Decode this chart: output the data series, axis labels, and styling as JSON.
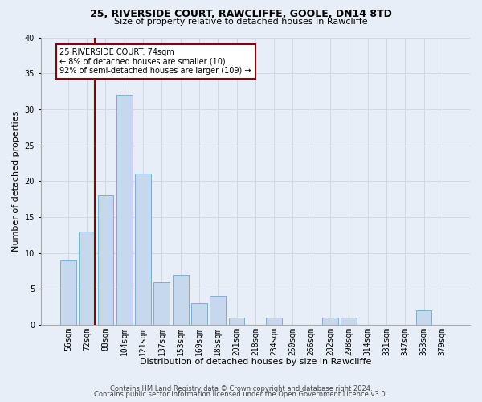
{
  "title1": "25, RIVERSIDE COURT, RAWCLIFFE, GOOLE, DN14 8TD",
  "title2": "Size of property relative to detached houses in Rawcliffe",
  "xlabel": "Distribution of detached houses by size in Rawcliffe",
  "ylabel": "Number of detached properties",
  "categories": [
    "56sqm",
    "72sqm",
    "88sqm",
    "104sqm",
    "121sqm",
    "137sqm",
    "153sqm",
    "169sqm",
    "185sqm",
    "201sqm",
    "218sqm",
    "234sqm",
    "250sqm",
    "266sqm",
    "282sqm",
    "298sqm",
    "314sqm",
    "331sqm",
    "347sqm",
    "363sqm",
    "379sqm"
  ],
  "values": [
    9,
    13,
    18,
    32,
    21,
    6,
    7,
    3,
    4,
    1,
    0,
    1,
    0,
    0,
    1,
    1,
    0,
    0,
    0,
    2,
    0
  ],
  "bar_color": "#c5d8ed",
  "bar_edge_color": "#7aafd4",
  "grid_color": "#d0d8e8",
  "annotation_text": "25 RIVERSIDE COURT: 74sqm\n← 8% of detached houses are smaller (10)\n92% of semi-detached houses are larger (109) →",
  "annotation_box_color": "white",
  "annotation_box_edge_color": "#8b0000",
  "vline_x_index": 1,
  "vline_color": "#8b0000",
  "ylim": [
    0,
    40
  ],
  "yticks": [
    0,
    5,
    10,
    15,
    20,
    25,
    30,
    35,
    40
  ],
  "footer1": "Contains HM Land Registry data © Crown copyright and database right 2024.",
  "footer2": "Contains public sector information licensed under the Open Government Licence v3.0.",
  "bg_color": "#e8eef8",
  "plot_bg_color": "#e8eef8",
  "title1_fontsize": 9,
  "title2_fontsize": 8,
  "ylabel_fontsize": 8,
  "xlabel_fontsize": 8,
  "tick_fontsize": 7,
  "annotation_fontsize": 7,
  "footer_fontsize": 6
}
